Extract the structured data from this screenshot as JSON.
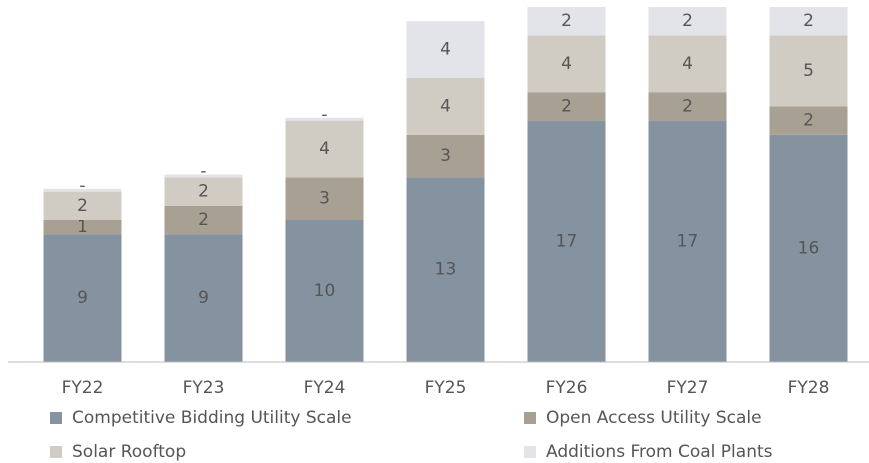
{
  "chart_data": {
    "type": "stacked_bar",
    "categories": [
      "FY22",
      "FY23",
      "FY24",
      "FY25",
      "FY26",
      "FY27",
      "FY28"
    ],
    "ylim": [
      0,
      25
    ],
    "series": [
      {
        "name": "Competitive Bidding Utility Scale",
        "color": "#8592a0",
        "values": [
          9,
          9,
          10,
          13,
          17,
          17,
          16
        ]
      },
      {
        "name": "Open Access Utility Scale",
        "color": "#a8a193",
        "values": [
          1,
          2,
          3,
          3,
          2,
          2,
          2
        ]
      },
      {
        "name": "Solar Rooftop",
        "color": "#d1ccc3",
        "values": [
          2,
          2,
          4,
          4,
          4,
          4,
          5
        ]
      },
      {
        "name": "Additions From Coal Plants",
        "color": "#e3e3ea",
        "values": [
          0.2,
          0.2,
          0.2,
          4,
          2,
          2,
          2
        ],
        "value_labels": [
          "-",
          "-",
          "-",
          "4",
          "2",
          "2",
          "2"
        ]
      }
    ]
  }
}
